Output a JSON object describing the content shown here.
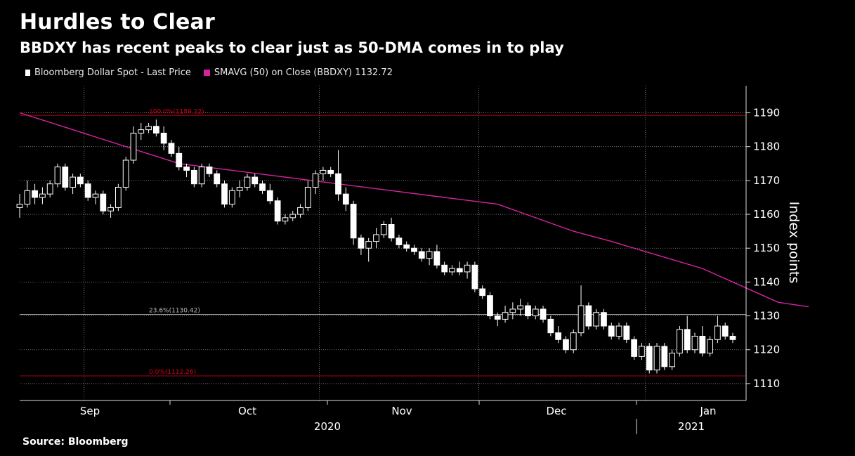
{
  "title": "Hurdles to Clear",
  "subtitle": "BBDXY has recent peaks to clear just as 50-DMA comes in to play",
  "source": "Source: Bloomberg",
  "colors": {
    "background": "#000000",
    "candle": "#ffffff",
    "sma": "#d6249f",
    "fib_line": "#a3001b",
    "grid": "#8a8a8a"
  },
  "legend": [
    {
      "label": "Bloomberg Dollar Spot - Last Price",
      "icon": "candlestick-icon"
    },
    {
      "label": "SMAVG (50)  on Close (BBDXY) 1132.72",
      "icon": "line-icon"
    }
  ],
  "chart_data": {
    "type": "candlestick",
    "ylabel": "Index points",
    "ylim": [
      1105,
      1198
    ],
    "yticks": [
      1110,
      1120,
      1130,
      1140,
      1150,
      1160,
      1170,
      1180,
      1190
    ],
    "x_month_labels": [
      "Sep",
      "Oct",
      "Nov",
      "Dec",
      "Jan"
    ],
    "x_year_labels": [
      "2020",
      "2021"
    ],
    "fib_levels": [
      {
        "label": "100.0%(1189.22)",
        "value": 1189.22,
        "color": "#d6001c"
      },
      {
        "label": "23.6%(1130.42)",
        "value": 1130.42,
        "color": "#bbbbbb"
      },
      {
        "label": "0.0%(1112.26)",
        "value": 1112.26,
        "color": "#d6001c"
      }
    ],
    "series": [
      {
        "name": "Bloomberg Dollar Spot - Last Price",
        "ohlc": [
          [
            1162,
            1166,
            1159,
            1163
          ],
          [
            1163,
            1170,
            1162,
            1167
          ],
          [
            1167,
            1169,
            1163,
            1165
          ],
          [
            1165,
            1168,
            1163,
            1166
          ],
          [
            1166,
            1170,
            1165,
            1169
          ],
          [
            1169,
            1175,
            1168,
            1174
          ],
          [
            1174,
            1175,
            1167,
            1168
          ],
          [
            1168,
            1172,
            1166,
            1171
          ],
          [
            1171,
            1172,
            1168,
            1169
          ],
          [
            1169,
            1170,
            1164,
            1165
          ],
          [
            1165,
            1167,
            1163,
            1166
          ],
          [
            1166,
            1167,
            1160,
            1161
          ],
          [
            1161,
            1163,
            1159,
            1162
          ],
          [
            1162,
            1169,
            1161,
            1168
          ],
          [
            1168,
            1177,
            1167,
            1176
          ],
          [
            1176,
            1186,
            1175,
            1184
          ],
          [
            1184,
            1187,
            1182,
            1185
          ],
          [
            1185,
            1187,
            1184,
            1186
          ],
          [
            1186,
            1188,
            1183,
            1184
          ],
          [
            1184,
            1186,
            1179,
            1181
          ],
          [
            1181,
            1182,
            1177,
            1178
          ],
          [
            1178,
            1180,
            1173,
            1174
          ],
          [
            1174,
            1175,
            1171,
            1173
          ],
          [
            1173,
            1174,
            1168,
            1169
          ],
          [
            1169,
            1175,
            1168,
            1174
          ],
          [
            1174,
            1175,
            1171,
            1172
          ],
          [
            1172,
            1173,
            1168,
            1169
          ],
          [
            1169,
            1170,
            1162,
            1163
          ],
          [
            1163,
            1168,
            1162,
            1167
          ],
          [
            1167,
            1170,
            1165,
            1168
          ],
          [
            1168,
            1172,
            1167,
            1171
          ],
          [
            1171,
            1172,
            1168,
            1169
          ],
          [
            1169,
            1170,
            1166,
            1167
          ],
          [
            1167,
            1169,
            1163,
            1164
          ],
          [
            1164,
            1165,
            1157,
            1158
          ],
          [
            1158,
            1160,
            1157,
            1159
          ],
          [
            1159,
            1161,
            1158,
            1160
          ],
          [
            1160,
            1163,
            1159,
            1162
          ],
          [
            1162,
            1170,
            1161,
            1168
          ],
          [
            1168,
            1173,
            1166,
            1172
          ],
          [
            1172,
            1174,
            1170,
            1173
          ],
          [
            1173,
            1174,
            1171,
            1172
          ],
          [
            1172,
            1179,
            1164,
            1166
          ],
          [
            1166,
            1168,
            1161,
            1163
          ],
          [
            1163,
            1164,
            1151,
            1153
          ],
          [
            1153,
            1154,
            1148,
            1150
          ],
          [
            1150,
            1153,
            1146,
            1152
          ],
          [
            1152,
            1156,
            1150,
            1154
          ],
          [
            1154,
            1158,
            1153,
            1157
          ],
          [
            1157,
            1159,
            1152,
            1153
          ],
          [
            1153,
            1154,
            1150,
            1151
          ],
          [
            1151,
            1152,
            1149,
            1150
          ],
          [
            1150,
            1151,
            1148,
            1149
          ],
          [
            1149,
            1150,
            1146,
            1147
          ],
          [
            1147,
            1150,
            1145,
            1149
          ],
          [
            1149,
            1151,
            1144,
            1145
          ],
          [
            1145,
            1146,
            1142,
            1143
          ],
          [
            1143,
            1145,
            1142,
            1144
          ],
          [
            1144,
            1146,
            1142,
            1143
          ],
          [
            1143,
            1146,
            1141,
            1145
          ],
          [
            1145,
            1146,
            1137,
            1138
          ],
          [
            1138,
            1139,
            1135,
            1136
          ],
          [
            1136,
            1137,
            1129,
            1130
          ],
          [
            1130,
            1131,
            1127,
            1129
          ],
          [
            1129,
            1133,
            1128,
            1131
          ],
          [
            1131,
            1134,
            1129,
            1132
          ],
          [
            1132,
            1135,
            1130,
            1133
          ],
          [
            1133,
            1134,
            1129,
            1130
          ],
          [
            1130,
            1133,
            1129,
            1132
          ],
          [
            1132,
            1133,
            1128,
            1129
          ],
          [
            1129,
            1130,
            1124,
            1125
          ],
          [
            1125,
            1127,
            1122,
            1123
          ],
          [
            1123,
            1124,
            1119,
            1120
          ],
          [
            1120,
            1126,
            1119,
            1125
          ],
          [
            1125,
            1139,
            1124,
            1133
          ],
          [
            1133,
            1134,
            1126,
            1127
          ],
          [
            1127,
            1132,
            1126,
            1131
          ],
          [
            1131,
            1132,
            1126,
            1127
          ],
          [
            1127,
            1128,
            1123,
            1124
          ],
          [
            1124,
            1128,
            1123,
            1127
          ],
          [
            1127,
            1128,
            1122,
            1123
          ],
          [
            1123,
            1124,
            1117,
            1118
          ],
          [
            1118,
            1122,
            1117,
            1121
          ],
          [
            1121,
            1122,
            1113,
            1114
          ],
          [
            1114,
            1122,
            1113,
            1121
          ],
          [
            1121,
            1122,
            1114,
            1115
          ],
          [
            1115,
            1120,
            1114,
            1119
          ],
          [
            1119,
            1127,
            1118,
            1126
          ],
          [
            1126,
            1130,
            1119,
            1120
          ],
          [
            1120,
            1125,
            1119,
            1124
          ],
          [
            1124,
            1127,
            1118,
            1119
          ],
          [
            1119,
            1124,
            1118,
            1123
          ],
          [
            1123,
            1130,
            1122,
            1127
          ],
          [
            1127,
            1128,
            1123,
            1124
          ],
          [
            1124,
            1125,
            1122,
            1123
          ]
        ]
      },
      {
        "name": "SMAVG (50)  on Close (BBDXY) 1132.72",
        "points": [
          [
            0,
            1190
          ],
          [
            7,
            1185
          ],
          [
            14,
            1180
          ],
          [
            21,
            1175
          ],
          [
            28,
            1173
          ],
          [
            35,
            1171
          ],
          [
            42,
            1169
          ],
          [
            49,
            1167
          ],
          [
            56,
            1165
          ],
          [
            63,
            1163
          ],
          [
            68,
            1159
          ],
          [
            73,
            1155
          ],
          [
            78,
            1152
          ],
          [
            84,
            1148
          ],
          [
            90,
            1144
          ],
          [
            95,
            1139
          ],
          [
            100,
            1134
          ],
          [
            104,
            1132.7
          ]
        ]
      }
    ]
  }
}
